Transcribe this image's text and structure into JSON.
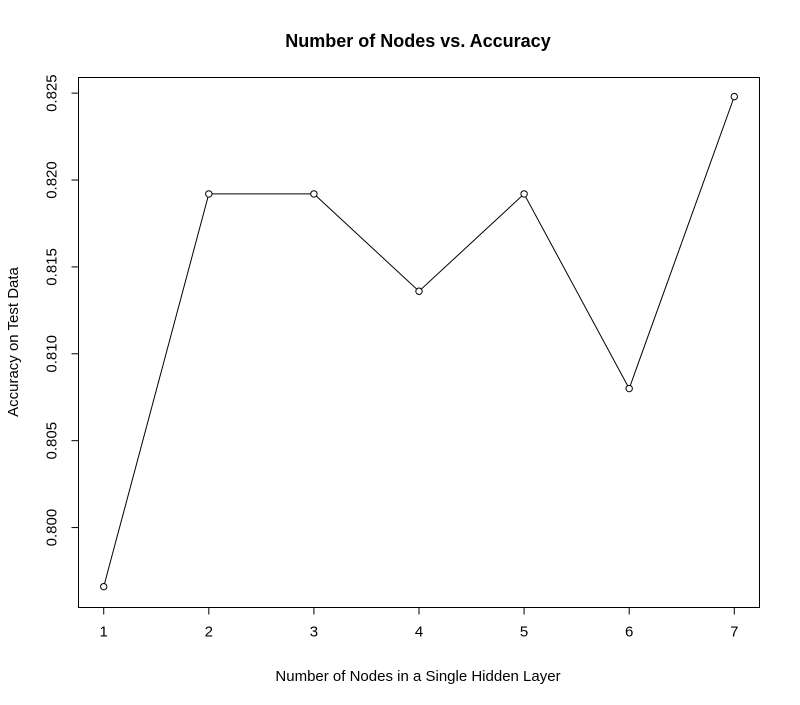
{
  "chart_data": {
    "type": "line",
    "title": "Number of Nodes vs. Accuracy",
    "xlabel": "Number of Nodes in a Single Hidden Layer",
    "ylabel": "Accuracy on Test Data",
    "x": [
      1,
      2,
      3,
      4,
      5,
      6,
      7
    ],
    "series": [
      {
        "values": [
          0.7966,
          0.8192,
          0.8192,
          0.8136,
          0.8192,
          0.808,
          0.8248
        ],
        "color": "#000000"
      }
    ],
    "xlim": [
      0.76,
      7.24
    ],
    "ylim": [
      0.7954,
      0.8259
    ],
    "x_ticks": [
      "1",
      "2",
      "3",
      "4",
      "5",
      "6",
      "7"
    ],
    "y_ticks": [
      "0.800",
      "0.805",
      "0.810",
      "0.815",
      "0.820",
      "0.825"
    ],
    "grid": false,
    "marker": "open-circle"
  }
}
